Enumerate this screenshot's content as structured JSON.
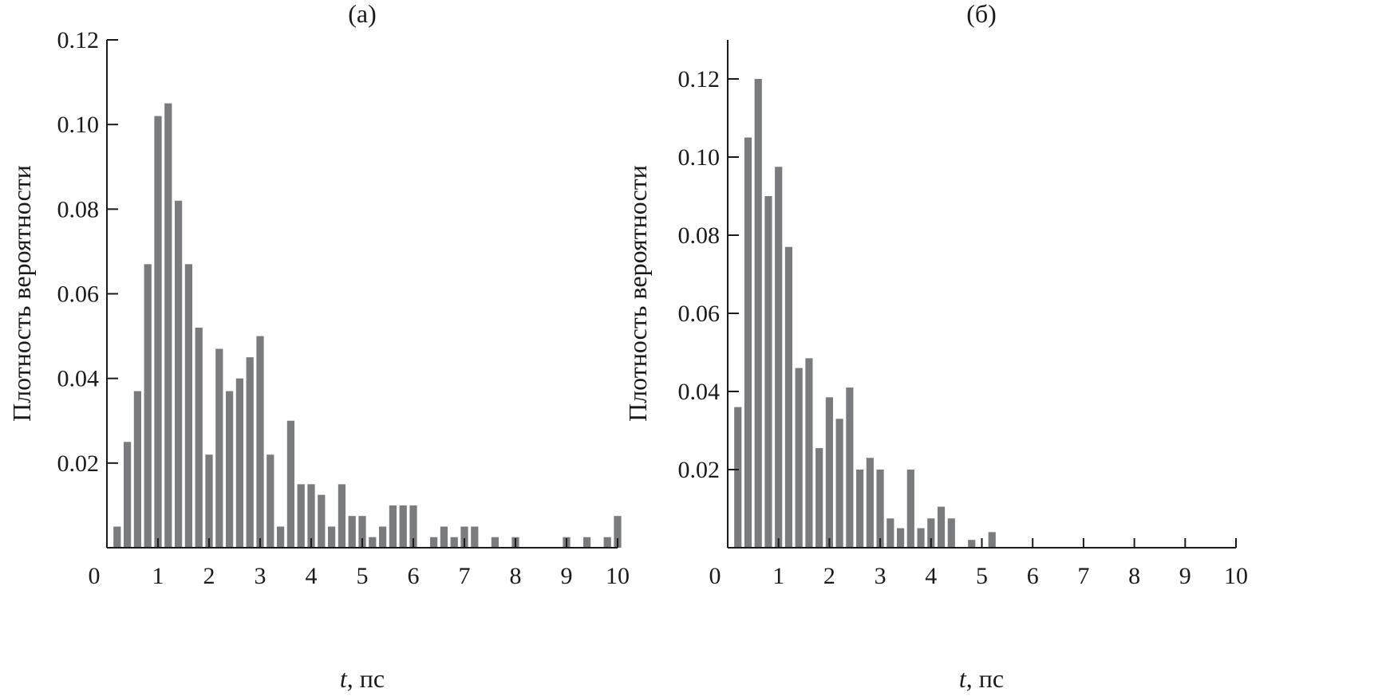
{
  "chart_data": [
    {
      "type": "bar",
      "title": "(а)",
      "xlabel_italic": "t",
      "xlabel_rest": ", пс",
      "ylabel": "Плотность вероятности",
      "xlim": [
        0,
        10
      ],
      "ylim": [
        0,
        0.12
      ],
      "xticks": [
        0,
        1,
        2,
        3,
        4,
        5,
        6,
        7,
        8,
        9,
        10
      ],
      "yticks": [
        0.02,
        0.04,
        0.06,
        0.08,
        0.1,
        0.12
      ],
      "ytick_labels": [
        "0.02",
        "0.04",
        "0.06",
        "0.08",
        "0.10",
        "0.12"
      ],
      "bar_color": "#7a7b7f",
      "grid": false,
      "x": [
        0.2,
        0.4,
        0.6,
        0.8,
        1.0,
        1.2,
        1.4,
        1.6,
        1.8,
        2.0,
        2.2,
        2.4,
        2.6,
        2.8,
        3.0,
        3.2,
        3.4,
        3.6,
        3.8,
        4.0,
        4.2,
        4.4,
        4.6,
        4.8,
        5.0,
        5.2,
        5.4,
        5.6,
        5.8,
        6.0,
        6.2,
        6.4,
        6.6,
        6.8,
        7.0,
        7.2,
        7.4,
        7.6,
        7.8,
        8.0,
        8.2,
        8.4,
        8.6,
        8.8,
        9.0,
        9.2,
        9.4,
        9.6,
        9.8,
        10.0
      ],
      "values": [
        0.005,
        0.025,
        0.037,
        0.067,
        0.102,
        0.105,
        0.082,
        0.067,
        0.052,
        0.022,
        0.047,
        0.037,
        0.04,
        0.045,
        0.05,
        0.022,
        0.005,
        0.03,
        0.015,
        0.015,
        0.0125,
        0.005,
        0.015,
        0.0075,
        0.0075,
        0.0025,
        0.005,
        0.01,
        0.01,
        0.01,
        0,
        0.0025,
        0.005,
        0.0025,
        0.005,
        0.005,
        0,
        0.0025,
        0,
        0.0025,
        0,
        0,
        0,
        0,
        0.0025,
        0,
        0.0025,
        0,
        0.0025,
        0.0075
      ]
    },
    {
      "type": "bar",
      "title": "(б)",
      "xlabel_italic": "t",
      "xlabel_rest": ", пс",
      "ylabel": "Плотность вероятности",
      "xlim": [
        0,
        10
      ],
      "ylim": [
        0,
        0.13
      ],
      "xticks": [
        0,
        1,
        2,
        3,
        4,
        5,
        6,
        7,
        8,
        9,
        10
      ],
      "yticks": [
        0.02,
        0.04,
        0.06,
        0.08,
        0.1,
        0.12
      ],
      "ytick_labels": [
        "0.02",
        "0.04",
        "0.06",
        "0.08",
        "0.10",
        "0.12"
      ],
      "bar_color": "#7a7b7f",
      "grid": false,
      "x": [
        0.2,
        0.4,
        0.6,
        0.8,
        1.0,
        1.2,
        1.4,
        1.6,
        1.8,
        2.0,
        2.2,
        2.4,
        2.6,
        2.8,
        3.0,
        3.2,
        3.4,
        3.6,
        3.8,
        4.0,
        4.2,
        4.4,
        4.6,
        4.8,
        5.0,
        5.2
      ],
      "values": [
        0.036,
        0.105,
        0.12,
        0.09,
        0.0975,
        0.077,
        0.046,
        0.0485,
        0.0255,
        0.0385,
        0.033,
        0.041,
        0.02,
        0.023,
        0.02,
        0.0075,
        0.005,
        0.02,
        0.005,
        0.0075,
        0.0105,
        0.0075,
        0,
        0.002,
        0,
        0.004
      ]
    }
  ]
}
